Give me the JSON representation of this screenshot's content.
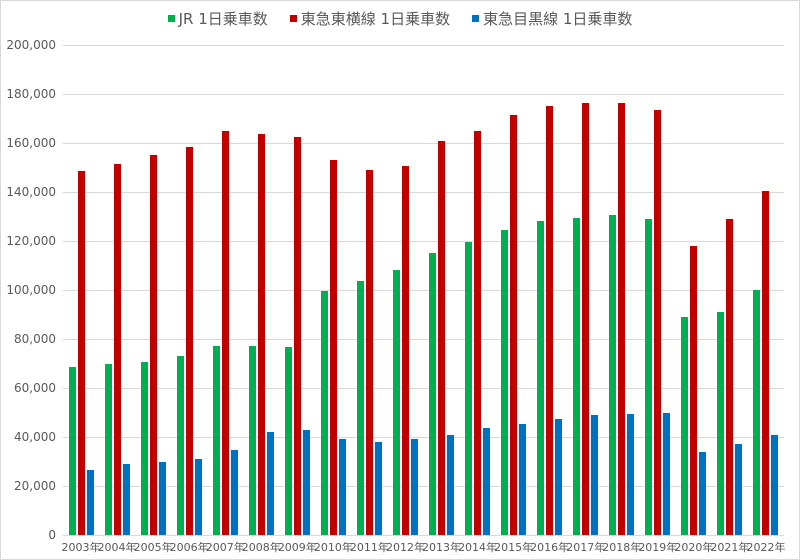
{
  "chart_data": {
    "type": "bar",
    "title": "",
    "xlabel": "",
    "ylabel": "",
    "ylim": [
      0,
      200000
    ],
    "y_ticks": [
      "0",
      "20,000",
      "40,000",
      "60,000",
      "80,000",
      "100,000",
      "120,000",
      "140,000",
      "160,000",
      "180,000",
      "200,000"
    ],
    "grid": true,
    "legend_position": "top",
    "categories": [
      "2003年",
      "2004年",
      "2005年",
      "2006年",
      "2007年",
      "2008年",
      "2009年",
      "2010年",
      "2011年",
      "2012年",
      "2013年",
      "2014年",
      "2015年",
      "2016年",
      "2017年",
      "2018年",
      "2019年",
      "2020年",
      "2021年",
      "2022年"
    ],
    "series": [
      {
        "name": "JR 1日乗車数",
        "color": "#00b050",
        "values": [
          68600,
          69700,
          70800,
          73000,
          77000,
          77000,
          76800,
          99500,
          103500,
          108000,
          115000,
          119500,
          124500,
          128000,
          129500,
          130500,
          129000,
          89000,
          91000,
          100000
        ]
      },
      {
        "name": "東急東横線 1日乗車数",
        "color": "#c00000",
        "values": [
          148500,
          151500,
          155000,
          158500,
          165000,
          163500,
          162500,
          153000,
          149000,
          150500,
          161000,
          165000,
          171500,
          175000,
          176500,
          176500,
          173500,
          118000,
          129000,
          140500
        ]
      },
      {
        "name": "東急目黒線 1日乗車数",
        "color": "#0070c0",
        "values": [
          26700,
          28800,
          30000,
          31000,
          34600,
          42000,
          43000,
          39000,
          38000,
          39000,
          41000,
          43500,
          45500,
          47500,
          49000,
          49500,
          49800,
          34000,
          37000,
          41000
        ]
      }
    ]
  }
}
